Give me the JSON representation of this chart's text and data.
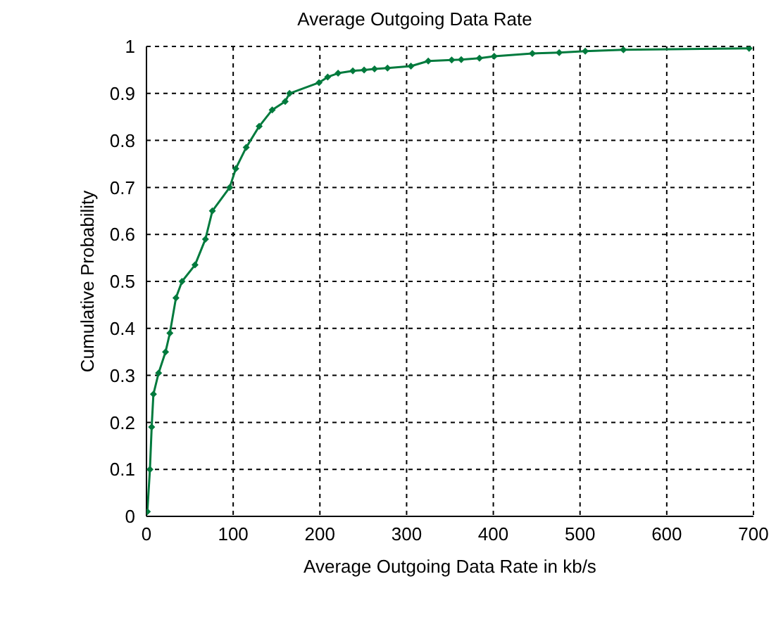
{
  "chart_data": {
    "type": "line",
    "title": "Average Outgoing Data Rate",
    "xlabel": "Average Outgoing Data Rate in kb/s",
    "ylabel": "Cumulative Probability",
    "x": [
      1,
      4,
      6,
      8,
      14,
      22,
      27,
      34,
      41,
      56,
      68,
      76,
      96,
      103,
      115,
      130,
      145,
      160,
      165,
      199,
      209,
      221,
      238,
      251,
      263,
      278,
      305,
      325,
      352,
      363,
      384,
      401,
      445,
      476,
      506,
      550,
      695
    ],
    "series": [
      {
        "color": "#007a3d",
        "values": [
          0.01,
          0.1,
          0.19,
          0.26,
          0.305,
          0.35,
          0.39,
          0.465,
          0.5,
          0.535,
          0.59,
          0.65,
          0.7,
          0.74,
          0.785,
          0.83,
          0.865,
          0.883,
          0.9,
          0.923,
          0.935,
          0.943,
          0.948,
          0.95,
          0.952,
          0.954,
          0.958,
          0.969,
          0.971,
          0.972,
          0.975,
          0.979,
          0.985,
          0.987,
          0.99,
          0.993,
          0.996
        ]
      }
    ],
    "xlim": [
      0,
      700
    ],
    "xticks": [
      0,
      100,
      200,
      300,
      400,
      500,
      600,
      700
    ],
    "ylim": [
      0,
      1
    ],
    "yticks": [
      0,
      0.1,
      0.2,
      0.3,
      0.4,
      0.5,
      0.6,
      0.7,
      0.8,
      0.9,
      1
    ],
    "grid": true,
    "marker": "diamond",
    "line_style": "solid"
  }
}
